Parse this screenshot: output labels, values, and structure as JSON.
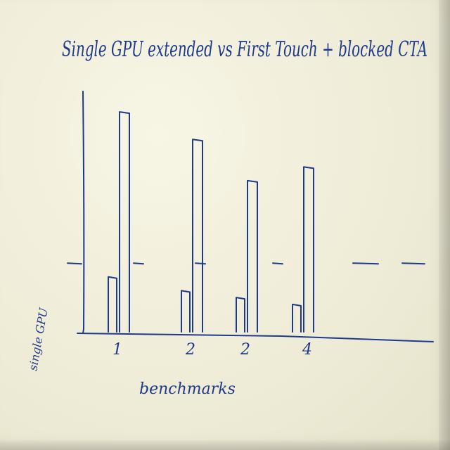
{
  "chart_data": {
    "type": "bar",
    "title": "Single GPU extended vs First Touch + blocked CTA",
    "xlabel": "benchmarks",
    "ylabel": "single GPU",
    "baseline_label": "single GPU",
    "categories": [
      "1",
      "2",
      "2",
      "4"
    ],
    "series": [
      {
        "values": [
          0.4,
          0.3,
          0.25,
          0.2
        ]
      },
      {
        "values": [
          1.6,
          1.4,
          1.1,
          1.2
        ]
      }
    ],
    "baseline_value": 0.5,
    "ylim": [
      0,
      1.8
    ],
    "grid": false,
    "legend": "none",
    "ink_color": "#1f3a8a"
  }
}
